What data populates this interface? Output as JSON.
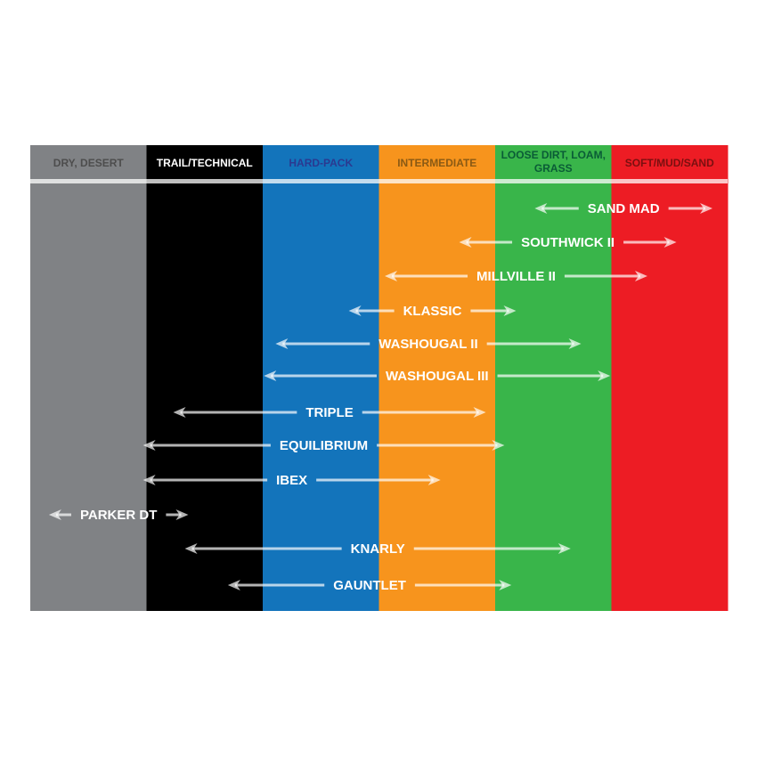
{
  "chart_data": {
    "type": "range",
    "categories": [
      "DRY, DESERT",
      "TRAIL/TECHNICAL",
      "HARD-PACK",
      "INTERMEDIATE",
      "LOOSE DIRT, LOAM, GRASS",
      "SOFT/MUD/SAND"
    ],
    "category_colors": [
      "#808285",
      "#000000",
      "#1374bb",
      "#f7941d",
      "#39b54a",
      "#ed1c24"
    ],
    "header_text_colors": [
      "#4d4d4d",
      "#ffffff",
      "#2b3990",
      "#8a5a14",
      "#0a5c36",
      "#7a1010"
    ],
    "x_units": "terrain category index (0 = left edge of DRY, DESERT, 6 = right edge of SOFT/MUD/SAND)",
    "xlim": [
      0,
      6
    ],
    "series": [
      {
        "name": "SAND MAD",
        "range": [
          4.34,
          5.87
        ]
      },
      {
        "name": "SOUTHWICK II",
        "range": [
          3.69,
          5.56
        ]
      },
      {
        "name": "MILLVILLE II",
        "range": [
          3.05,
          5.31
        ]
      },
      {
        "name": "KLASSIC",
        "range": [
          2.74,
          4.18
        ]
      },
      {
        "name": "WASHOUGAL II",
        "range": [
          2.11,
          4.74
        ]
      },
      {
        "name": "WASHOUGAL III",
        "range": [
          2.01,
          4.99
        ]
      },
      {
        "name": "TRIPLE",
        "range": [
          1.23,
          3.92
        ]
      },
      {
        "name": "EQUILIBRIUM",
        "range": [
          0.97,
          4.08
        ]
      },
      {
        "name": "IBEX",
        "range": [
          0.97,
          3.53
        ]
      },
      {
        "name": "PARKER DT",
        "range": [
          0.16,
          1.36
        ]
      },
      {
        "name": "KNARLY",
        "range": [
          1.33,
          4.65
        ]
      },
      {
        "name": "GAUNTLET",
        "range": [
          1.7,
          4.14
        ]
      }
    ],
    "arrow_color": "#ffffff"
  }
}
